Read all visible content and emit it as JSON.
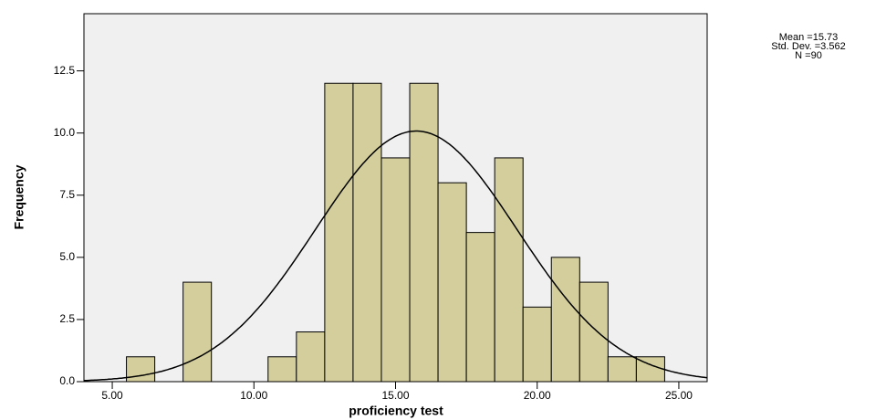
{
  "chart_data": {
    "type": "histogram",
    "x_label": "proficiency test",
    "y_label": "Frequency",
    "bins": [
      5.5,
      6.5,
      7.5,
      8.5,
      9.5,
      10.5,
      11.5,
      12.5,
      13.5,
      14.5,
      15.5,
      16.5,
      17.5,
      18.5,
      19.5,
      20.5,
      21.5,
      22.5,
      23.5,
      24.5
    ],
    "counts": [
      1,
      0,
      4,
      0,
      0,
      1,
      2,
      12,
      12,
      9,
      12,
      8,
      6,
      9,
      3,
      5,
      4,
      1,
      1
    ],
    "color": "#d3ce9c",
    "xlim": [
      4,
      26
    ],
    "ylim": [
      0,
      14.8
    ],
    "xticks": [
      {
        "value": 5,
        "label": "5.00"
      },
      {
        "value": 10,
        "label": "10.00"
      },
      {
        "value": 15,
        "label": "15.00"
      },
      {
        "value": 20,
        "label": "20.00"
      },
      {
        "value": 25,
        "label": "25.00"
      }
    ],
    "yticks": [
      {
        "value": 0,
        "label": "0.0"
      },
      2.5,
      {
        "value": 5,
        "label": "5.0"
      },
      7.5,
      {
        "value": 10,
        "label": "10.0"
      },
      12.5
    ],
    "stats": [
      {
        "value": 15.73,
        "label": "Mean =15.73"
      },
      {
        "value": 3.562,
        "label": "Std. Dev. =3.562"
      },
      {
        "value": 90,
        "label": "N =90"
      }
    ]
  }
}
